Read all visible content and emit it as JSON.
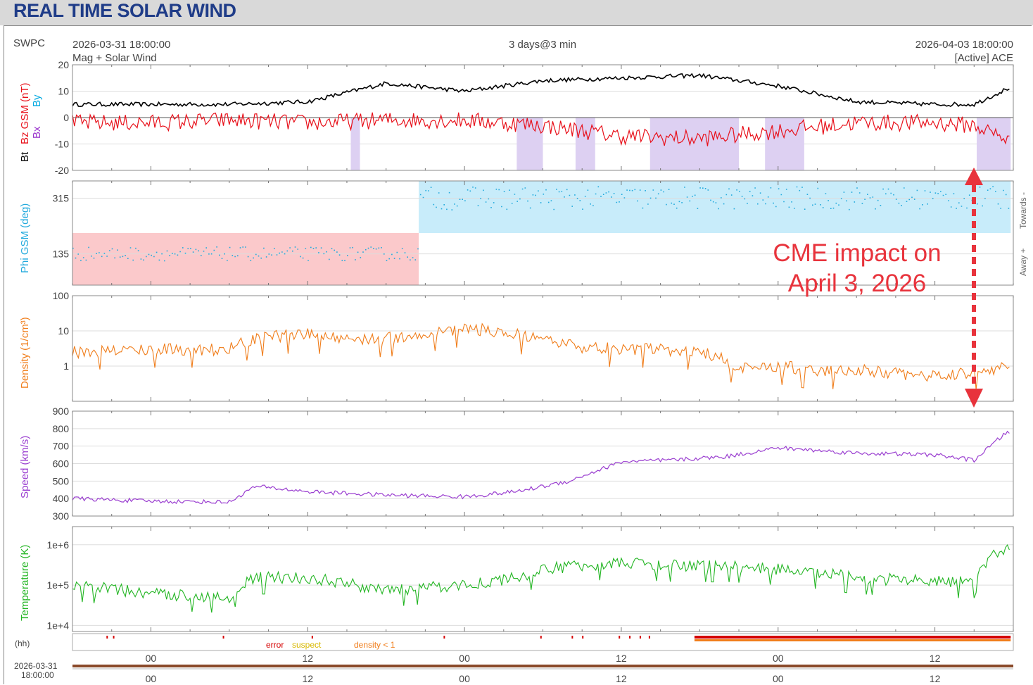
{
  "page_title": "REAL TIME SOLAR WIND",
  "header": {
    "org": "SWPC",
    "start_time": "2026-03-31 18:00:00",
    "product": "Mag + Solar Wind",
    "span": "3 days@3 min",
    "end_time": "2026-04-03 18:00:00",
    "source": "[Active] ACE"
  },
  "x_axis": {
    "unit_label": "(hh)",
    "tick_labels": [
      "00",
      "12",
      "00",
      "12",
      "00",
      "12"
    ],
    "start_stamp_date": "2026-03-31",
    "start_stamp_time": "18:00:00"
  },
  "legend_flags": {
    "error": "error",
    "suspect": "suspect",
    "density": "density < 1"
  },
  "annotation": {
    "text_line1": "CME impact on",
    "text_line2": "April 3, 2026"
  },
  "colors": {
    "bt": "#000000",
    "bz": "#e8101a",
    "bx": "#9933cc",
    "by": "#00a8e0",
    "phi": "#22aadd",
    "density": "#f07d1a",
    "speed": "#9a3ed0",
    "temperature": "#22b522",
    "towards_fill": "#c8ecfa",
    "away_fill": "#fbc9cb",
    "bz_neg_fill": "#ddd0f2",
    "annotation": "#e8333c",
    "error_flag": "#d40000",
    "suspect_flag": "#d8b800",
    "density_flag": "#f07d1a"
  },
  "chart_data": [
    {
      "type": "line",
      "panel": "mag",
      "ylabel_parts": [
        "Bt",
        "Bz GSM (nT)",
        "Bx",
        "By"
      ],
      "ylim": [
        -20,
        20
      ],
      "y_ticks": [
        "20",
        "10",
        "0",
        "-10",
        "-20"
      ],
      "x_hours_from_start": [
        0,
        6,
        12,
        18,
        24,
        30,
        36,
        42,
        48,
        54,
        60,
        66,
        69,
        72
      ],
      "series": [
        {
          "name": "Bt",
          "values": [
            5,
            5,
            5,
            6,
            13,
            10,
            14,
            15,
            16,
            12,
            6,
            5,
            5,
            12
          ]
        },
        {
          "name": "Bz GSM",
          "values": [
            -2,
            -2,
            -1,
            -2,
            -1,
            -1,
            -3,
            -7,
            -8,
            -5,
            -2,
            -2,
            -3,
            -9
          ]
        }
      ],
      "grid": true
    },
    {
      "type": "scatter",
      "panel": "phi",
      "ylabel": "Phi GSM (deg)",
      "y_ticks": [
        "315",
        "135"
      ],
      "right_labels": [
        "Towards -",
        "Away +"
      ],
      "x_hours_from_start": [
        0,
        6,
        12,
        18,
        24,
        30,
        36,
        42,
        48,
        54,
        60,
        66,
        72
      ],
      "values": [
        135,
        135,
        135,
        135,
        135,
        315,
        315,
        315,
        315,
        315,
        315,
        315,
        315
      ],
      "grid": true
    },
    {
      "type": "line",
      "panel": "density",
      "ylabel": "Density (1/cm³)",
      "scale": "log",
      "ylim": [
        0.1,
        100
      ],
      "y_ticks": [
        "100",
        "10",
        "1"
      ],
      "x_hours_from_start": [
        0,
        6,
        9,
        12,
        15,
        18,
        21,
        24,
        27,
        30,
        33,
        36,
        39,
        42,
        45,
        48,
        51,
        54,
        57,
        60,
        63,
        66,
        69,
        72
      ],
      "values": [
        2.5,
        3,
        3,
        3,
        7,
        8,
        6,
        6,
        8,
        12,
        9,
        5,
        3.5,
        3,
        3,
        2.5,
        0.8,
        1,
        0.7,
        0.8,
        0.6,
        0.5,
        0.7,
        1
      ],
      "grid": true
    },
    {
      "type": "line",
      "panel": "speed",
      "ylabel": "Speed (km/s)",
      "ylim": [
        300,
        900
      ],
      "y_ticks": [
        "900",
        "800",
        "700",
        "600",
        "500",
        "400",
        "300"
      ],
      "x_hours_from_start": [
        0,
        6,
        12,
        14,
        18,
        24,
        30,
        34,
        38,
        42,
        46,
        50,
        54,
        60,
        66,
        69,
        71.5
      ],
      "values": [
        400,
        385,
        380,
        470,
        440,
        420,
        410,
        440,
        500,
        610,
        620,
        640,
        690,
        660,
        650,
        620,
        780
      ],
      "grid": true
    },
    {
      "type": "line",
      "panel": "temperature",
      "ylabel": "Temperature (K)",
      "scale": "log",
      "y_ticks": [
        "1e+6",
        "1e+5",
        "1e+4"
      ],
      "x_hours_from_start": [
        0,
        6,
        12,
        14,
        18,
        24,
        30,
        34,
        38,
        42,
        46,
        50,
        54,
        60,
        66,
        69,
        71.5
      ],
      "values": [
        100000,
        60000,
        50000,
        150000,
        150000,
        70000,
        100000,
        150000,
        300000,
        350000,
        300000,
        300000,
        250000,
        150000,
        120000,
        120000,
        800000
      ],
      "grid": true
    }
  ]
}
